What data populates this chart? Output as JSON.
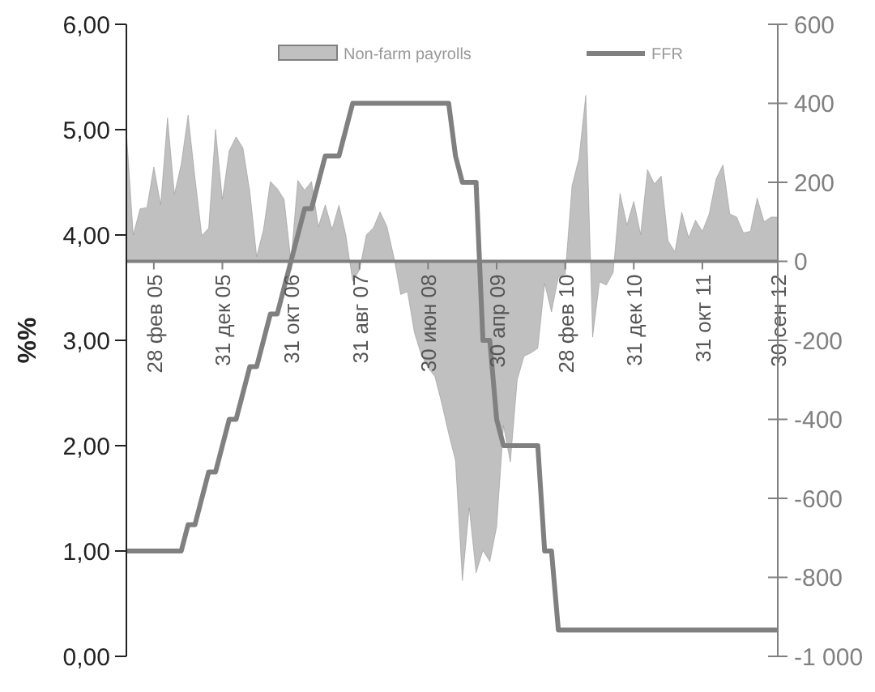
{
  "chart_data": {
    "type": "area",
    "ylabel": "%%",
    "categories": [
      null,
      null,
      null,
      null,
      "28 фев 05",
      null,
      null,
      null,
      null,
      null,
      null,
      null,
      null,
      null,
      "31 дек 05",
      null,
      null,
      null,
      null,
      null,
      null,
      null,
      null,
      null,
      "31 окт 06",
      null,
      null,
      null,
      null,
      null,
      null,
      null,
      null,
      null,
      "31 авг 07",
      null,
      null,
      null,
      null,
      null,
      null,
      null,
      null,
      null,
      "30 июн 08",
      null,
      null,
      null,
      null,
      null,
      null,
      null,
      null,
      null,
      "30 апр 09",
      null,
      null,
      null,
      null,
      null,
      null,
      null,
      null,
      null,
      "28 фев 10",
      null,
      null,
      null,
      null,
      null,
      null,
      null,
      null,
      null,
      "31 дек 10",
      null,
      null,
      null,
      null,
      null,
      null,
      null,
      null,
      null,
      "31 окт 11",
      null,
      null,
      null,
      null,
      null,
      null,
      null,
      null,
      null,
      null,
      "30 сен 12"
    ],
    "series": [
      {
        "name": "Non-farm payrolls",
        "axis": "y2",
        "color": "#c0c0c0",
        "values": [
          328,
          67,
          133,
          136,
          239,
          143,
          363,
          170,
          246,
          370,
          212,
          65,
          84,
          334,
          157,
          280,
          315,
          287,
          177,
          12,
          81,
          202,
          184,
          157,
          0,
          205,
          180,
          202,
          88,
          143,
          81,
          142,
          67,
          -50,
          -22,
          67,
          84,
          125,
          88,
          12,
          -84,
          -77,
          -180,
          -236,
          -270,
          -292,
          -360,
          -436,
          -504,
          -808,
          -624,
          -788,
          -732,
          -760,
          -672,
          -416,
          -508,
          -300,
          -240,
          -232,
          -220,
          -56,
          -128,
          -40,
          -32,
          192,
          260,
          420,
          -192,
          -52,
          -60,
          -28,
          172,
          92,
          152,
          68,
          232,
          196,
          216,
          52,
          24,
          124,
          60,
          104,
          76,
          120,
          208,
          244,
          120,
          112,
          72,
          76,
          160,
          100,
          112,
          112
        ]
      },
      {
        "name": "FFR",
        "type": "line",
        "axis": "y",
        "color": "#808080",
        "values": [
          1,
          1,
          1,
          1,
          1,
          1,
          1,
          1,
          1,
          1.25,
          1.25,
          1.5,
          1.75,
          1.75,
          2,
          2.25,
          2.25,
          2.5,
          2.75,
          2.75,
          3,
          3.25,
          3.25,
          3.5,
          3.75,
          4,
          4.25,
          4.25,
          4.5,
          4.75,
          4.75,
          4.75,
          5,
          5.25,
          5.25,
          5.25,
          5.25,
          5.25,
          5.25,
          5.25,
          5.25,
          5.25,
          5.25,
          5.25,
          5.25,
          5.25,
          5.25,
          5.25,
          4.75,
          4.5,
          4.5,
          4.5,
          3,
          3,
          2.25,
          2,
          2,
          2,
          2,
          2,
          2,
          1,
          1,
          0.25,
          0.25,
          0.25,
          0.25,
          0.25,
          0.25,
          0.25,
          0.25,
          0.25,
          0.25,
          0.25,
          0.25,
          0.25,
          0.25,
          0.25,
          0.25,
          0.25,
          0.25,
          0.25,
          0.25,
          0.25,
          0.25,
          0.25,
          0.25,
          0.25,
          0.25,
          0.25,
          0.25,
          0.25,
          0.25,
          0.25,
          0.25,
          0.25
        ]
      }
    ],
    "ylim": [
      0,
      6
    ],
    "yticks": [
      {
        "value": 0,
        "label": "0,00"
      },
      {
        "value": 1,
        "label": "1,00"
      },
      {
        "value": 2,
        "label": "2,00"
      },
      {
        "value": 3,
        "label": "3,00"
      },
      {
        "value": 4,
        "label": "4,00"
      },
      {
        "value": 5,
        "label": "5,00"
      },
      {
        "value": 6,
        "label": "6,00"
      }
    ],
    "y2lim": [
      -1000,
      600
    ],
    "y2ticks": [
      {
        "value": -1000,
        "label": "-1 000"
      },
      -800,
      -600,
      -400,
      -200,
      0,
      200,
      400,
      600
    ],
    "legend": "top",
    "grid": false
  }
}
